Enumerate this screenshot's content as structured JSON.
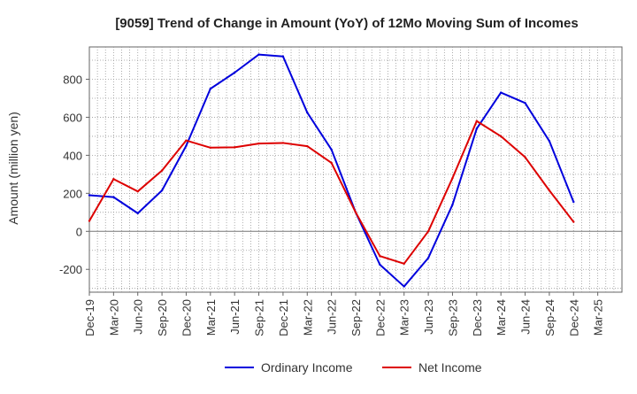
{
  "chart_data": {
    "type": "line",
    "title": "[9059]  Trend of Change in Amount (YoY) of 12Mo Moving Sum of Incomes",
    "xlabel": "",
    "ylabel": "Amount (million yen)",
    "ylim": [
      -320,
      970
    ],
    "yticks": [
      -200,
      0,
      200,
      400,
      600,
      800
    ],
    "grid": true,
    "legend_position": "bottom-center",
    "categories": [
      "Dec-19",
      "Mar-20",
      "Jun-20",
      "Sep-20",
      "Dec-20",
      "Mar-21",
      "Jun-21",
      "Sep-21",
      "Dec-21",
      "Mar-22",
      "Jun-22",
      "Sep-22",
      "Dec-22",
      "Mar-23",
      "Jun-23",
      "Sep-23",
      "Dec-23",
      "Mar-24",
      "Jun-24",
      "Sep-24",
      "Dec-24",
      "Mar-25"
    ],
    "series": [
      {
        "name": "Ordinary Income",
        "color": "#0000dd",
        "values": [
          190,
          180,
          95,
          215,
          450,
          750,
          835,
          930,
          920,
          625,
          430,
          100,
          -175,
          -290,
          -140,
          140,
          540,
          730,
          675,
          475,
          155,
          null
        ]
      },
      {
        "name": "Net Income",
        "color": "#dd0000",
        "values": [
          55,
          275,
          210,
          320,
          478,
          440,
          442,
          462,
          465,
          448,
          360,
          100,
          -130,
          -170,
          0,
          280,
          580,
          500,
          390,
          215,
          50,
          null
        ]
      }
    ]
  }
}
